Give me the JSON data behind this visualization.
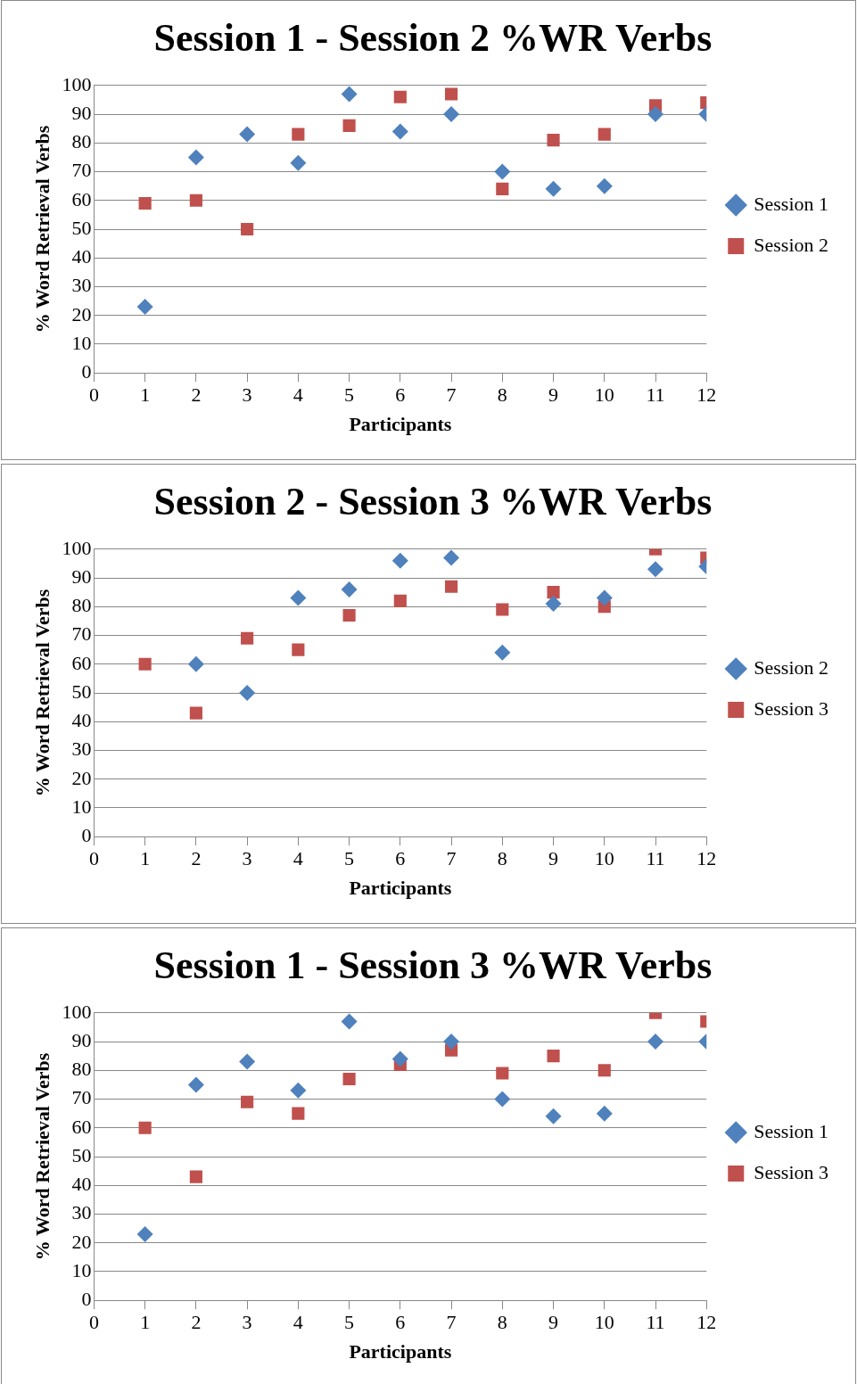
{
  "chart_data": [
    {
      "type": "scatter",
      "title": "Session 1 - Session 2 %WR Verbs",
      "xlabel": "Participants",
      "ylabel": "% Word Retrieval Verbs",
      "x": [
        1,
        2,
        3,
        4,
        5,
        6,
        7,
        8,
        9,
        10,
        11,
        12
      ],
      "xlim": [
        0,
        12
      ],
      "xticks": [
        0,
        1,
        2,
        3,
        4,
        5,
        6,
        7,
        8,
        9,
        10,
        11,
        12
      ],
      "ylim": [
        0,
        100
      ],
      "yticks": [
        0,
        10,
        20,
        30,
        40,
        50,
        60,
        70,
        80,
        90,
        100
      ],
      "grid": "y",
      "legend": "right",
      "series": [
        {
          "name": "Session 1",
          "color": "#4f81bd",
          "marker": "diamond",
          "values": [
            23,
            75,
            83,
            73,
            97,
            84,
            90,
            70,
            64,
            65,
            90,
            90
          ]
        },
        {
          "name": "Session 2",
          "color": "#c0504d",
          "marker": "square",
          "values": [
            59,
            60,
            50,
            83,
            86,
            96,
            97,
            64,
            81,
            83,
            93,
            94
          ]
        }
      ]
    },
    {
      "type": "scatter",
      "title": "Session 2 - Session 3 %WR Verbs",
      "xlabel": "Participants",
      "ylabel": "% Word Retrieval Verbs",
      "x": [
        1,
        2,
        3,
        4,
        5,
        6,
        7,
        8,
        9,
        10,
        11,
        12
      ],
      "xlim": [
        0,
        12
      ],
      "xticks": [
        0,
        1,
        2,
        3,
        4,
        5,
        6,
        7,
        8,
        9,
        10,
        11,
        12
      ],
      "ylim": [
        0,
        100
      ],
      "yticks": [
        0,
        10,
        20,
        30,
        40,
        50,
        60,
        70,
        80,
        90,
        100
      ],
      "grid": "y",
      "legend": "right",
      "series": [
        {
          "name": "Session 2",
          "color": "#4f81bd",
          "marker": "diamond",
          "values": [
            null,
            60,
            50,
            83,
            86,
            96,
            97,
            64,
            81,
            83,
            93,
            94
          ]
        },
        {
          "name": "Session 3",
          "color": "#c0504d",
          "marker": "square",
          "values": [
            60,
            43,
            69,
            65,
            77,
            82,
            87,
            79,
            85,
            80,
            100,
            97
          ]
        }
      ]
    },
    {
      "type": "scatter",
      "title": "Session 1 - Session 3 %WR Verbs",
      "xlabel": "Participants",
      "ylabel": "% Word Retrieval Verbs",
      "x": [
        1,
        2,
        3,
        4,
        5,
        6,
        7,
        8,
        9,
        10,
        11,
        12
      ],
      "xlim": [
        0,
        12
      ],
      "xticks": [
        0,
        1,
        2,
        3,
        4,
        5,
        6,
        7,
        8,
        9,
        10,
        11,
        12
      ],
      "ylim": [
        0,
        100
      ],
      "yticks": [
        0,
        10,
        20,
        30,
        40,
        50,
        60,
        70,
        80,
        90,
        100
      ],
      "grid": "y",
      "legend": "right",
      "series": [
        {
          "name": "Session 1",
          "color": "#4f81bd",
          "marker": "diamond",
          "values": [
            23,
            75,
            83,
            73,
            97,
            84,
            90,
            70,
            64,
            65,
            90,
            90
          ]
        },
        {
          "name": "Session 3",
          "color": "#c0504d",
          "marker": "square",
          "values": [
            60,
            43,
            69,
            65,
            77,
            82,
            87,
            79,
            85,
            80,
            100,
            97
          ]
        }
      ]
    }
  ]
}
